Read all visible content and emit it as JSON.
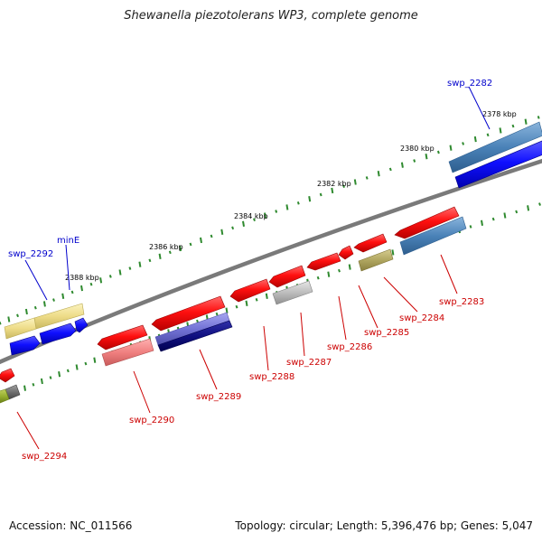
{
  "title": "Shewanella piezotolerans WP3, complete genome",
  "footer": {
    "accession": "Accession: NC_011566",
    "stats": "Topology: circular; Length: 5,396,476 bp; Genes: 5,047"
  },
  "colors": {
    "forward_label": "#0000cc",
    "reverse_label": "#cc0000",
    "backbone": "#7a7a7a",
    "tick": "#2f8a2f"
  },
  "kbp_labels": [
    "2378 kbp",
    "2380 kbp",
    "2382 kbp",
    "2384 kbp",
    "2386 kbp",
    "2388 kbp"
  ],
  "gene_labels": [
    {
      "text": "swp_2282",
      "strand": "forward"
    },
    {
      "text": "minE",
      "strand": "forward"
    },
    {
      "text": "swp_2292",
      "strand": "forward"
    },
    {
      "text": "swp_2283",
      "strand": "reverse"
    },
    {
      "text": "swp_2284",
      "strand": "reverse"
    },
    {
      "text": "swp_2285",
      "strand": "reverse"
    },
    {
      "text": "swp_2286",
      "strand": "reverse"
    },
    {
      "text": "swp_2287",
      "strand": "reverse"
    },
    {
      "text": "swp_2288",
      "strand": "reverse"
    },
    {
      "text": "swp_2289",
      "strand": "reverse"
    },
    {
      "text": "swp_2290",
      "strand": "reverse"
    },
    {
      "text": "swp_2294",
      "strand": "reverse"
    }
  ]
}
